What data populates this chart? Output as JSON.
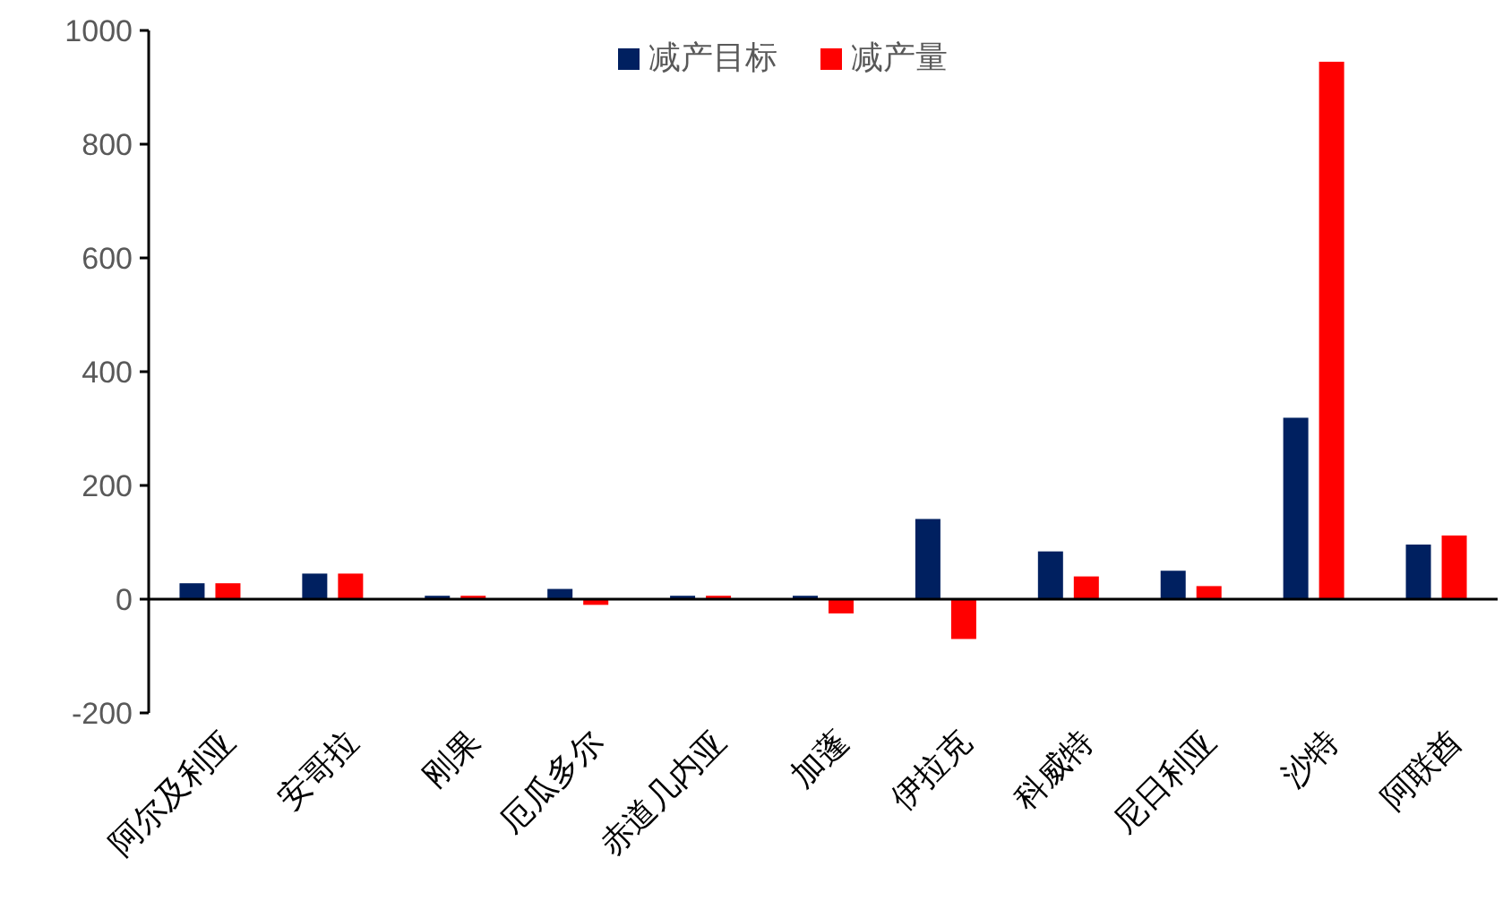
{
  "chart_data": {
    "type": "bar",
    "categories": [
      "阿尔及利亚",
      "安哥拉",
      "刚果",
      "厄瓜多尔",
      "赤道几内亚",
      "加蓬",
      "伊拉克",
      "科威特",
      "尼日利亚",
      "沙特",
      "阿联酋"
    ],
    "series": [
      {
        "name": "减产目标",
        "color": "#002060",
        "values": [
          28,
          45,
          6,
          18,
          6,
          6,
          141,
          84,
          50,
          319,
          96
        ]
      },
      {
        "name": "减产量",
        "color": "#ff0000",
        "values": [
          28,
          45,
          6,
          -10,
          6,
          -25,
          -70,
          40,
          23,
          945,
          112
        ]
      }
    ],
    "ylim": [
      -200,
      1000
    ],
    "yticks": [
      -200,
      0,
      200,
      400,
      600,
      800,
      1000
    ],
    "legend": "top"
  }
}
